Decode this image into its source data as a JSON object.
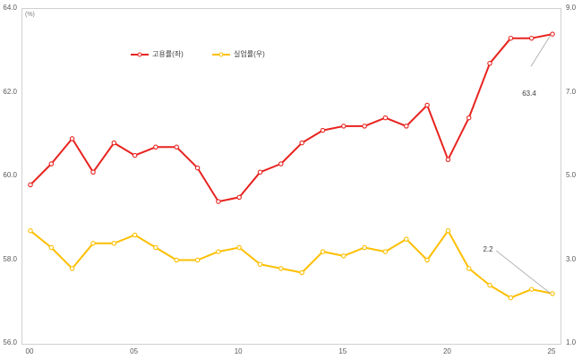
{
  "chart": {
    "unit_label": "(%)",
    "legend": {
      "items": [
        {
          "label": "고용률(좌)"
        },
        {
          "label": "실업률(우)"
        }
      ]
    }
  },
  "colors": {
    "employment_line": "#e7231f",
    "unemployment_line": "#fcbf00",
    "axis_text": "#595959",
    "plot_border": "#d0d0d0",
    "callout_line": "#a6a6a6",
    "annotation_text": "#404040"
  },
  "chart_data": {
    "type": "line",
    "title": "",
    "xlabel": "",
    "ylabel_left": "(%)",
    "grid": false,
    "legend_position": "top-inside",
    "x_categories": [
      "00",
      "01",
      "02",
      "03",
      "04",
      "05",
      "06",
      "07",
      "08",
      "09",
      "10",
      "11",
      "12",
      "13",
      "14",
      "15",
      "16",
      "17",
      "18",
      "19",
      "20",
      "21",
      "22",
      "23",
      "24",
      "25"
    ],
    "x_tick_labels": [
      "00",
      "05",
      "10",
      "15",
      "20",
      "25"
    ],
    "left_axis": {
      "min": 56.0,
      "max": 64.0,
      "tick_labels": [
        "64.0",
        "62.0",
        "60.0",
        "58.0",
        "56.0"
      ]
    },
    "right_axis": {
      "min": 1.0,
      "max": 9.0,
      "tick_labels": [
        "9.0",
        "7.0",
        "5.0",
        "3.0",
        "1.0"
      ]
    },
    "series": [
      {
        "name": "고용률(좌)",
        "axis": "left",
        "color": "#e7231f",
        "values": [
          59.8,
          60.3,
          60.9,
          60.1,
          60.8,
          60.5,
          60.7,
          60.7,
          60.2,
          59.4,
          59.5,
          60.1,
          60.3,
          60.8,
          61.1,
          61.2,
          61.2,
          61.4,
          61.2,
          61.7,
          60.4,
          61.4,
          62.7,
          63.3,
          63.3,
          63.4
        ]
      },
      {
        "name": "실업률(우)",
        "axis": "right",
        "color": "#fcbf00",
        "values": [
          3.7,
          3.3,
          2.8,
          3.4,
          3.4,
          3.6,
          3.3,
          3.0,
          3.0,
          3.2,
          3.3,
          2.9,
          2.8,
          2.7,
          3.2,
          3.1,
          3.3,
          3.2,
          3.5,
          3.0,
          3.7,
          2.8,
          2.4,
          2.1,
          2.3,
          2.2
        ]
      }
    ],
    "annotations": [
      {
        "text": "63.4",
        "series": 0,
        "x_index": 25
      },
      {
        "text": "2.2",
        "series": 1,
        "x_index": 25
      }
    ]
  }
}
